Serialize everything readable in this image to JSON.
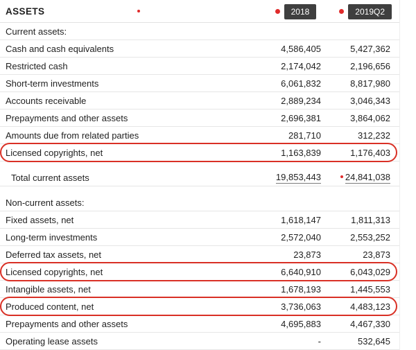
{
  "header": {
    "title": "ASSETS",
    "columns": [
      {
        "label": "2018"
      },
      {
        "label": "2019Q2"
      }
    ]
  },
  "colors": {
    "annotation_red": "#d93025",
    "marker_dot_red": "#e02b2b",
    "badge_background": "#3f3f3f",
    "grid_line": "#e6e6e6"
  },
  "table": {
    "rows": [
      {
        "type": "section",
        "label": "Current assets:",
        "v1": "",
        "v2": ""
      },
      {
        "type": "item",
        "label": "Cash and cash equivalents",
        "v1": "4,586,405",
        "v2": "5,427,362"
      },
      {
        "type": "item",
        "label": "Restricted cash",
        "v1": "2,174,042",
        "v2": "2,196,656"
      },
      {
        "type": "item",
        "label": "Short-term investments",
        "v1": "6,061,832",
        "v2": "8,817,980"
      },
      {
        "type": "item",
        "label": "Accounts receivable",
        "v1": "2,889,234",
        "v2": "3,046,343"
      },
      {
        "type": "item",
        "label": "Prepayments and other assets",
        "v1": "2,696,381",
        "v2": "3,864,062"
      },
      {
        "type": "item",
        "label": "Amounts due from related parties",
        "v1": "281,710",
        "v2": "312,232"
      },
      {
        "type": "item",
        "label": "Licensed copyrights, net",
        "v1": "1,163,839",
        "v2": "1,176,403",
        "ring": true
      },
      {
        "type": "spacer"
      },
      {
        "type": "total",
        "label": "Total current assets",
        "v1": "19,853,443",
        "v2": "24,841,038",
        "dot2": true
      },
      {
        "type": "spacer"
      },
      {
        "type": "section",
        "label": "Non-current assets:",
        "v1": "",
        "v2": ""
      },
      {
        "type": "item",
        "label": "Fixed assets, net",
        "v1": "1,618,147",
        "v2": "1,811,313"
      },
      {
        "type": "item",
        "label": "Long-term investments",
        "v1": "2,572,040",
        "v2": "2,553,252"
      },
      {
        "type": "item",
        "label": "Deferred tax assets, net",
        "v1": "23,873",
        "v2": "23,873"
      },
      {
        "type": "item",
        "label": "Licensed copyrights, net",
        "v1": "6,640,910",
        "v2": "6,043,029",
        "ring": true
      },
      {
        "type": "item",
        "label": "Intangible assets, net",
        "v1": "1,678,193",
        "v2": "1,445,553"
      },
      {
        "type": "item",
        "label": "Produced content, net",
        "v1": "3,736,063",
        "v2": "4,483,123",
        "ring": true
      },
      {
        "type": "item",
        "label": "Prepayments and other assets",
        "v1": "4,695,883",
        "v2": "4,467,330"
      },
      {
        "type": "item",
        "label": "Operating lease assets",
        "v1": "-",
        "v2": "532,645"
      }
    ]
  }
}
